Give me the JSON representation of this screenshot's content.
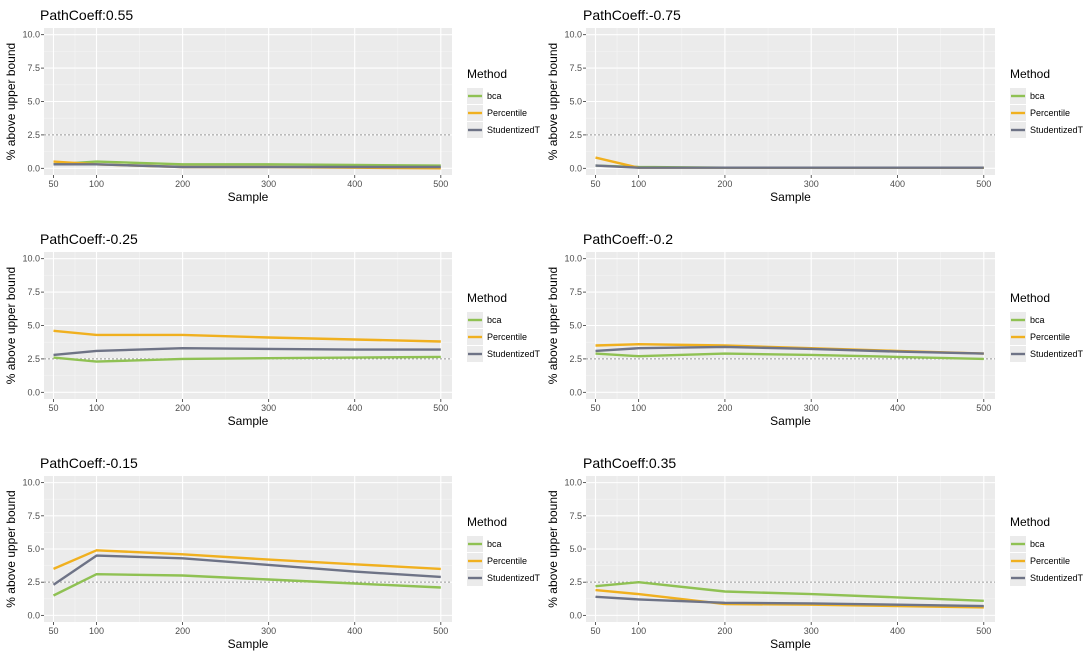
{
  "chart_data": [
    {
      "type": "line",
      "title": "PathCoeff:0.55",
      "xlabel": "Sample",
      "ylabel": "% above upper bound",
      "x": [
        50,
        100,
        200,
        300,
        400,
        500
      ],
      "xticks": [
        "50",
        "100",
        "200",
        "300",
        "400",
        "500"
      ],
      "ylim": [
        0,
        10
      ],
      "yticks": [
        "0.0",
        "2.5",
        "5.0",
        "7.5",
        "10.0"
      ],
      "reference_line": 2.5,
      "legend_title": "Method",
      "series": [
        {
          "name": "bca",
          "values": [
            0.3,
            0.5,
            0.3,
            0.3,
            0.25,
            0.2
          ]
        },
        {
          "name": "Percentile",
          "values": [
            0.5,
            0.3,
            0.1,
            0.1,
            0.05,
            0.0
          ]
        },
        {
          "name": "StudentizedT",
          "values": [
            0.3,
            0.3,
            0.1,
            0.1,
            0.1,
            0.1
          ]
        }
      ]
    },
    {
      "type": "line",
      "title": "PathCoeff:-0.75",
      "xlabel": "Sample",
      "ylabel": "% above upper bound",
      "x": [
        50,
        100,
        200,
        300,
        400,
        500
      ],
      "xticks": [
        "50",
        "100",
        "200",
        "300",
        "400",
        "500"
      ],
      "ylim": [
        0,
        10
      ],
      "yticks": [
        "0.0",
        "2.5",
        "5.0",
        "7.5",
        "10.0"
      ],
      "reference_line": 2.5,
      "legend_title": "Method",
      "series": [
        {
          "name": "bca",
          "values": [
            0.2,
            0.1,
            0.05,
            0.05,
            0.05,
            0.05
          ]
        },
        {
          "name": "Percentile",
          "values": [
            0.8,
            0.05,
            0.05,
            0.05,
            0.05,
            0.05
          ]
        },
        {
          "name": "StudentizedT",
          "values": [
            0.2,
            0.05,
            0.05,
            0.05,
            0.05,
            0.05
          ]
        }
      ]
    },
    {
      "type": "line",
      "title": "PathCoeff:-0.25",
      "xlabel": "Sample",
      "ylabel": "% above upper bound",
      "x": [
        50,
        100,
        200,
        300,
        400,
        500
      ],
      "xticks": [
        "50",
        "100",
        "200",
        "300",
        "400",
        "500"
      ],
      "ylim": [
        0,
        10
      ],
      "yticks": [
        "0.0",
        "2.5",
        "5.0",
        "7.5",
        "10.0"
      ],
      "reference_line": 2.5,
      "legend_title": "Method",
      "series": [
        {
          "name": "bca",
          "values": [
            2.6,
            2.3,
            2.5,
            2.55,
            2.6,
            2.65
          ]
        },
        {
          "name": "Percentile",
          "values": [
            4.6,
            4.3,
            4.3,
            4.1,
            3.95,
            3.8
          ]
        },
        {
          "name": "StudentizedT",
          "values": [
            2.8,
            3.1,
            3.3,
            3.25,
            3.2,
            3.2
          ]
        }
      ]
    },
    {
      "type": "line",
      "title": "PathCoeff:-0.2",
      "xlabel": "Sample",
      "ylabel": "% above upper bound",
      "x": [
        50,
        100,
        200,
        300,
        400,
        500
      ],
      "xticks": [
        "50",
        "100",
        "200",
        "300",
        "400",
        "500"
      ],
      "ylim": [
        0,
        10
      ],
      "yticks": [
        "0.0",
        "2.5",
        "5.0",
        "7.5",
        "10.0"
      ],
      "reference_line": 2.5,
      "legend_title": "Method",
      "series": [
        {
          "name": "bca",
          "values": [
            2.9,
            2.7,
            2.9,
            2.8,
            2.65,
            2.5
          ]
        },
        {
          "name": "Percentile",
          "values": [
            3.5,
            3.6,
            3.5,
            3.3,
            3.1,
            2.9
          ]
        },
        {
          "name": "StudentizedT",
          "values": [
            3.1,
            3.3,
            3.4,
            3.25,
            3.05,
            2.9
          ]
        }
      ]
    },
    {
      "type": "line",
      "title": "PathCoeff:-0.15",
      "xlabel": "Sample",
      "ylabel": "% above upper bound",
      "x": [
        50,
        100,
        200,
        300,
        400,
        500
      ],
      "xticks": [
        "50",
        "100",
        "200",
        "300",
        "400",
        "500"
      ],
      "ylim": [
        0,
        10
      ],
      "yticks": [
        "0.0",
        "2.5",
        "5.0",
        "7.5",
        "10.0"
      ],
      "reference_line": 2.5,
      "legend_title": "Method",
      "series": [
        {
          "name": "bca",
          "values": [
            1.5,
            3.1,
            3.0,
            2.7,
            2.4,
            2.1
          ]
        },
        {
          "name": "Percentile",
          "values": [
            3.5,
            4.9,
            4.6,
            4.2,
            3.85,
            3.5
          ]
        },
        {
          "name": "StudentizedT",
          "values": [
            2.3,
            4.5,
            4.3,
            3.8,
            3.3,
            2.9
          ]
        }
      ]
    },
    {
      "type": "line",
      "title": "PathCoeff:0.35",
      "xlabel": "Sample",
      "ylabel": "% above upper bound",
      "x": [
        50,
        100,
        200,
        300,
        400,
        500
      ],
      "xticks": [
        "50",
        "100",
        "200",
        "300",
        "400",
        "500"
      ],
      "ylim": [
        0,
        10
      ],
      "yticks": [
        "0.0",
        "2.5",
        "5.0",
        "7.5",
        "10.0"
      ],
      "reference_line": 2.5,
      "legend_title": "Method",
      "series": [
        {
          "name": "bca",
          "values": [
            2.2,
            2.5,
            1.8,
            1.6,
            1.35,
            1.1
          ]
        },
        {
          "name": "Percentile",
          "values": [
            1.9,
            1.6,
            0.85,
            0.8,
            0.7,
            0.6
          ]
        },
        {
          "name": "StudentizedT",
          "values": [
            1.4,
            1.2,
            0.95,
            0.9,
            0.8,
            0.7
          ]
        }
      ]
    }
  ],
  "colors": {
    "bca": "#8fc153",
    "Percentile": "#f0b01f",
    "StudentizedT": "#6e7386",
    "panel_bg": "#ebebeb",
    "grid_major": "#ffffff",
    "grid_minor": "#f5f5f5",
    "reference": "#9a9a9a",
    "axis_text": "#4d4d4d",
    "title_text": "#000000"
  }
}
